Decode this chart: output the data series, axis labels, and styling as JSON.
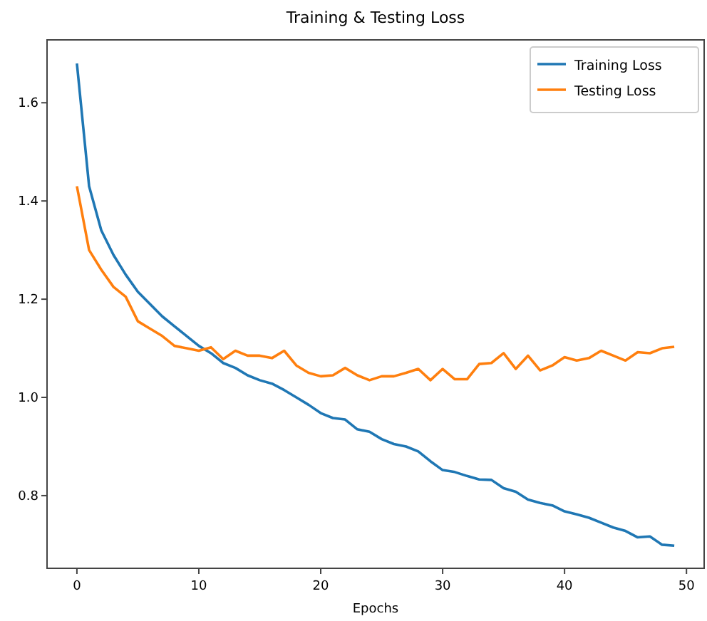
{
  "chart_data": {
    "type": "line",
    "title": "Training & Testing Loss",
    "xlabel": "Epochs",
    "x": [
      0,
      1,
      2,
      3,
      4,
      5,
      6,
      7,
      8,
      9,
      10,
      11,
      12,
      13,
      14,
      15,
      16,
      17,
      18,
      19,
      20,
      21,
      22,
      23,
      24,
      25,
      26,
      27,
      28,
      29,
      30,
      31,
      32,
      33,
      34,
      35,
      36,
      37,
      38,
      39,
      40,
      41,
      42,
      43,
      44,
      45,
      46,
      47,
      48,
      49
    ],
    "series": [
      {
        "name": "Training Loss",
        "color": "#1f77b4",
        "values": [
          1.68,
          1.43,
          1.34,
          1.29,
          1.25,
          1.215,
          1.19,
          1.165,
          1.145,
          1.125,
          1.105,
          1.09,
          1.07,
          1.06,
          1.045,
          1.035,
          1.028,
          1.015,
          1.0,
          0.985,
          0.968,
          0.958,
          0.955,
          0.935,
          0.93,
          0.915,
          0.905,
          0.9,
          0.89,
          0.87,
          0.852,
          0.848,
          0.84,
          0.833,
          0.832,
          0.815,
          0.808,
          0.792,
          0.785,
          0.78,
          0.768,
          0.762,
          0.755,
          0.745,
          0.735,
          0.728,
          0.715,
          0.717,
          0.7,
          0.698
        ]
      },
      {
        "name": "Testing Loss",
        "color": "#ff7f0e",
        "values": [
          1.43,
          1.3,
          1.26,
          1.225,
          1.205,
          1.155,
          1.14,
          1.125,
          1.105,
          1.1,
          1.095,
          1.102,
          1.078,
          1.095,
          1.085,
          1.085,
          1.08,
          1.095,
          1.065,
          1.05,
          1.043,
          1.045,
          1.06,
          1.045,
          1.035,
          1.043,
          1.043,
          1.05,
          1.058,
          1.035,
          1.058,
          1.037,
          1.037,
          1.068,
          1.07,
          1.09,
          1.058,
          1.085,
          1.055,
          1.065,
          1.082,
          1.075,
          1.08,
          1.095,
          1.085,
          1.075,
          1.092,
          1.09,
          1.1,
          1.103
        ]
      }
    ],
    "xlim": [
      -2.45,
      51.45
    ],
    "xticks": [
      0,
      10,
      20,
      30,
      40,
      50
    ],
    "ylim": [
      0.652,
      1.728
    ],
    "yticks": [
      {
        "value": 0.8,
        "label": "0.8"
      },
      {
        "value": 1.0,
        "label": "1.0"
      },
      {
        "value": 1.2,
        "label": "1.2"
      },
      {
        "value": 1.4,
        "label": "1.4"
      },
      {
        "value": 1.6,
        "label": "1.6"
      }
    ],
    "legend": "top right",
    "grid": false,
    "marker": "none",
    "line_style": "solid"
  }
}
